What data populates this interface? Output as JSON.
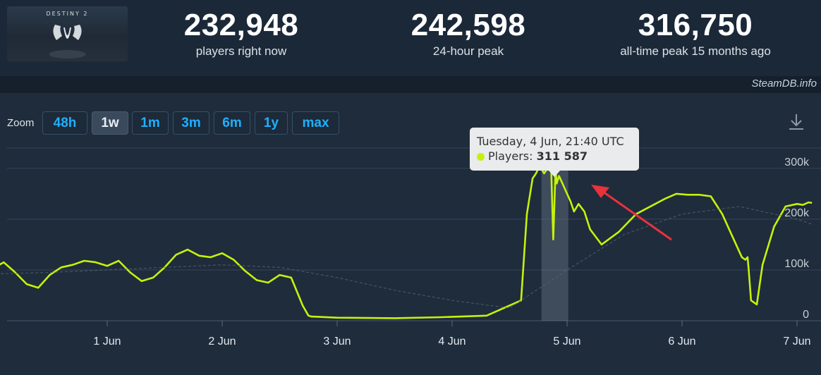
{
  "header": {
    "logo_text": "DESTINY 2",
    "stats": [
      {
        "value": "232,948",
        "label": "players right now"
      },
      {
        "value": "242,598",
        "label": "24-hour peak"
      },
      {
        "value": "316,750",
        "label": "all-time peak 15 months ago"
      }
    ]
  },
  "watermark": "SteamDB.info",
  "zoom": {
    "label": "Zoom",
    "buttons": [
      "48h",
      "1w",
      "1m",
      "3m",
      "6m",
      "1y",
      "max"
    ],
    "active": "1w"
  },
  "tooltip": {
    "date": "Tuesday, 4 Jun, 21:40 UTC",
    "series_label": "Players:",
    "value": "311 587"
  },
  "colors": {
    "players_line": "#c5f20b",
    "background": "#1b2838",
    "accent": "#1fb0ff",
    "arrow": "#e8323c"
  },
  "chart_data": {
    "type": "line",
    "xlabel": "",
    "ylabel": "",
    "x_ticks": [
      "1 Jun",
      "2 Jun",
      "3 Jun",
      "4 Jun",
      "5 Jun",
      "6 Jun",
      "7 Jun"
    ],
    "y_ticks": [
      "0",
      "100k",
      "200k",
      "300k"
    ],
    "ylim": [
      0,
      340000
    ],
    "grid": true,
    "series": [
      {
        "name": "Players",
        "x": [
          -0.87,
          -0.8,
          -0.7,
          -0.6,
          -0.5,
          -0.4,
          -0.3,
          -0.2,
          -0.1,
          0,
          0.1,
          0.2,
          0.3,
          0.4,
          0.5,
          0.6,
          0.7,
          0.8,
          0.9,
          1,
          1.1,
          1.2,
          1.3,
          1.4,
          1.5,
          1.6,
          1.7,
          1.8,
          1.9,
          2,
          2.1,
          2.2,
          2.3,
          2.4,
          2.5,
          2.6,
          2.7,
          2.75,
          2.78,
          2.8,
          3,
          3.5,
          3.9,
          4.3,
          4.6,
          4.65,
          4.7,
          4.73,
          4.76,
          4.8,
          4.83,
          4.86,
          4.88,
          4.9,
          4.91,
          4.93,
          4.96,
          5.0,
          5.03,
          5.06,
          5.1,
          5.15,
          5.2,
          5.3,
          5.45,
          5.6,
          5.75,
          5.85,
          5.95,
          6.05,
          6.15,
          6.25,
          6.35,
          6.45,
          6.52,
          6.55,
          6.57,
          6.58,
          6.6,
          6.65,
          6.7,
          6.8,
          6.9,
          7.0,
          7.05,
          7.1,
          7.13
        ],
        "y": [
          100000,
          80000,
          52000,
          55000,
          75000,
          90000,
          100000,
          98000,
          105000,
          102000,
          115000,
          95000,
          72000,
          65000,
          90000,
          105000,
          110000,
          118000,
          115000,
          108000,
          118000,
          95000,
          78000,
          85000,
          105000,
          130000,
          140000,
          128000,
          125000,
          133000,
          120000,
          98000,
          80000,
          75000,
          90000,
          85000,
          30000,
          10000,
          8000,
          8000,
          6000,
          5000,
          7000,
          10000,
          40000,
          210000,
          280000,
          290000,
          305000,
          290000,
          300000,
          311587,
          160000,
          300000,
          270000,
          285000,
          270000,
          250000,
          235000,
          215000,
          230000,
          215000,
          180000,
          150000,
          175000,
          210000,
          228000,
          240000,
          250000,
          248000,
          248000,
          245000,
          210000,
          160000,
          125000,
          120000,
          125000,
          100000,
          40000,
          32000,
          110000,
          185000,
          225000,
          230000,
          228000,
          233000,
          232000
        ]
      },
      {
        "name": "",
        "x": [
          -0.87,
          -0.5,
          0,
          0.5,
          1,
          1.5,
          2,
          2.5,
          3,
          3.5,
          4,
          4.5,
          5,
          5.5,
          6,
          6.5,
          7,
          7.13
        ],
        "y": [
          90000,
          88000,
          92000,
          95000,
          100000,
          105000,
          110000,
          105000,
          85000,
          60000,
          40000,
          25000,
          100000,
          170000,
          210000,
          225000,
          200000,
          190000
        ]
      }
    ],
    "highlight": {
      "x": 4.9,
      "y": 311587
    },
    "annotations": [
      "arrow pointing to peak"
    ]
  }
}
